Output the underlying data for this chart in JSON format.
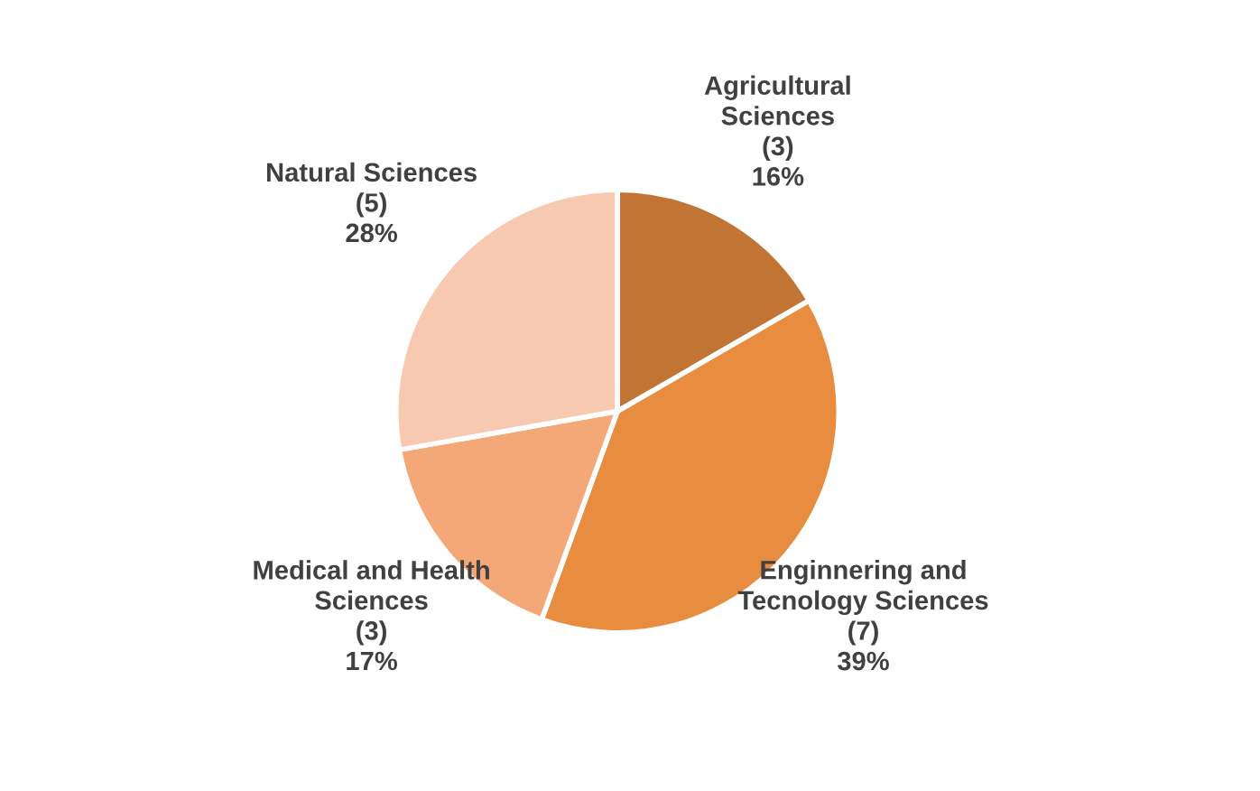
{
  "chart_data": {
    "type": "pie",
    "categories": [
      "Agricultural\nSciences",
      "Enginnering and\nTecnology Sciences",
      "Medical and Health\nSciences",
      "Natural Sciences"
    ],
    "values": [
      3,
      7,
      3,
      5
    ],
    "value_labels": [
      "(3)\n16%",
      "(7)\n39%",
      "(3)\n17%",
      "(5)\n28%"
    ],
    "colors": [
      "#c17434",
      "#e88d40",
      "#f5a877",
      "#f7c9b0"
    ]
  }
}
